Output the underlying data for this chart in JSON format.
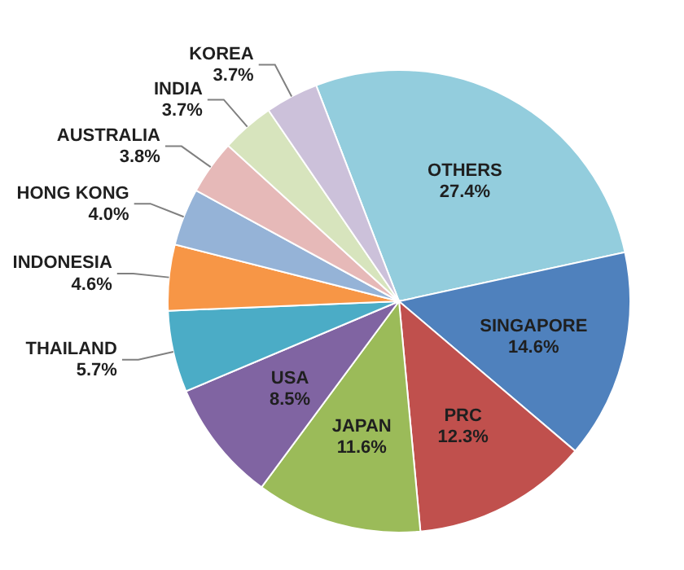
{
  "chart_data": {
    "type": "pie",
    "categories": [
      "OTHERS",
      "SINGAPORE",
      "PRC",
      "JAPAN",
      "USA",
      "THAILAND",
      "INDONESIA",
      "HONG KONG",
      "AUSTRALIA",
      "INDIA",
      "KOREA"
    ],
    "values": [
      27.4,
      14.6,
      12.3,
      11.6,
      8.5,
      5.7,
      4.6,
      4.0,
      3.8,
      3.7,
      3.7
    ],
    "value_labels": [
      "27.4%",
      "14.6%",
      "12.3%",
      "11.6%",
      "8.5%",
      "5.7%",
      "4.6%",
      "4.0%",
      "3.8%",
      "3.7%",
      "3.7%"
    ],
    "colors": [
      "#93cddd",
      "#4f81bd",
      "#c0504d",
      "#9bbb59",
      "#8064a2",
      "#4bacc6",
      "#f79646",
      "#95b3d7",
      "#e6b9b8",
      "#d7e4bd",
      "#ccc1da"
    ]
  }
}
